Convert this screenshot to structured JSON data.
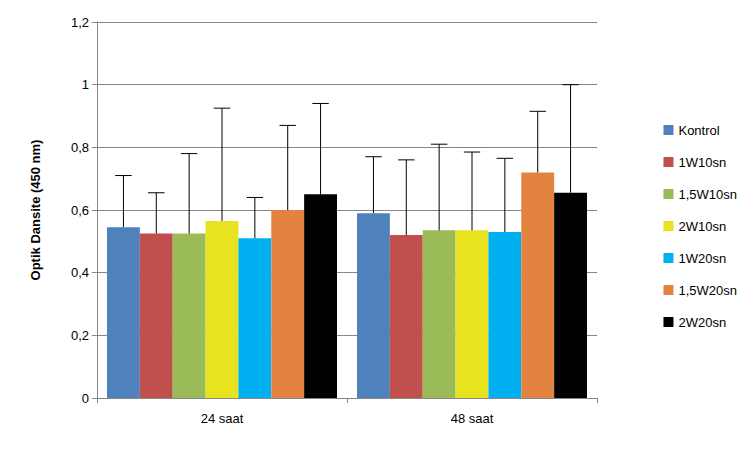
{
  "chart_data": {
    "type": "bar",
    "y_label": "Optik Dansite (450 nm)",
    "categories": [
      "24 saat",
      "48 saat"
    ],
    "series": [
      {
        "name": "Kontrol",
        "color": "#4f81bd",
        "values": [
          0.545,
          0.59
        ],
        "errors": [
          0.165,
          0.18
        ]
      },
      {
        "name": "1W10sn",
        "color": "#c0504d",
        "values": [
          0.525,
          0.52
        ],
        "errors": [
          0.13,
          0.24
        ]
      },
      {
        "name": "1,5W10sn",
        "color": "#9bbb59",
        "values": [
          0.525,
          0.535
        ],
        "errors": [
          0.255,
          0.275
        ]
      },
      {
        "name": "2W10sn",
        "color": "#e8e21f",
        "values": [
          0.565,
          0.535
        ],
        "errors": [
          0.36,
          0.25
        ]
      },
      {
        "name": "1W20sn",
        "color": "#00b0f0",
        "values": [
          0.51,
          0.53
        ],
        "errors": [
          0.13,
          0.235
        ]
      },
      {
        "name": "1,5W20sn",
        "color": "#e3833f",
        "values": [
          0.6,
          0.72
        ],
        "errors": [
          0.27,
          0.195
        ]
      },
      {
        "name": "2W20sn",
        "color": "#000000",
        "values": [
          0.65,
          0.655
        ],
        "errors": [
          0.29,
          0.345
        ]
      }
    ],
    "ylim": [
      0,
      1.2
    ],
    "yticks": [
      0,
      {
        "value": 0.2,
        "label": "0,2"
      },
      {
        "value": 0.4,
        "label": "0,4"
      },
      {
        "value": 0.6,
        "label": "0,6"
      },
      {
        "value": 0.8,
        "label": "0,8"
      },
      1,
      {
        "value": 1.2,
        "label": "1,2"
      }
    ],
    "grid": true,
    "legend": "right"
  }
}
